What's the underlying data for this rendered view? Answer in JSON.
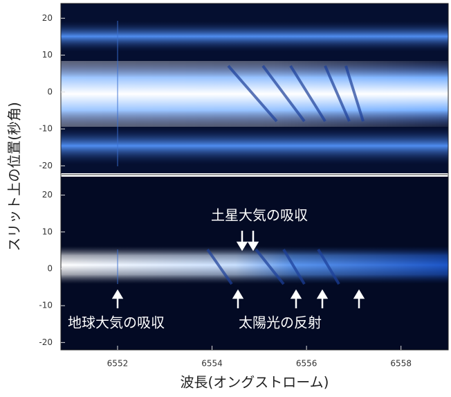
{
  "chart_data": [
    {
      "type": "spectrum",
      "ylabel": "スリット上の位置(秒角)",
      "xlim": [
        6550.8,
        6559.0
      ],
      "ylim": [
        -22,
        24
      ],
      "yticks": [
        -20,
        -10,
        0,
        10,
        20
      ]
    },
    {
      "type": "spectrum",
      "xlabel": "波長(オングストローム)",
      "xlim": [
        6550.8,
        6559.0
      ],
      "ylim": [
        -22,
        25
      ],
      "yticks": [
        -20,
        -10,
        0,
        10,
        20
      ],
      "xticks": [
        6552,
        6554,
        6556,
        6558
      ],
      "annotations": [
        "土星大気の吸収",
        "地球大気の吸収",
        "太陽光の反射"
      ]
    }
  ]
}
